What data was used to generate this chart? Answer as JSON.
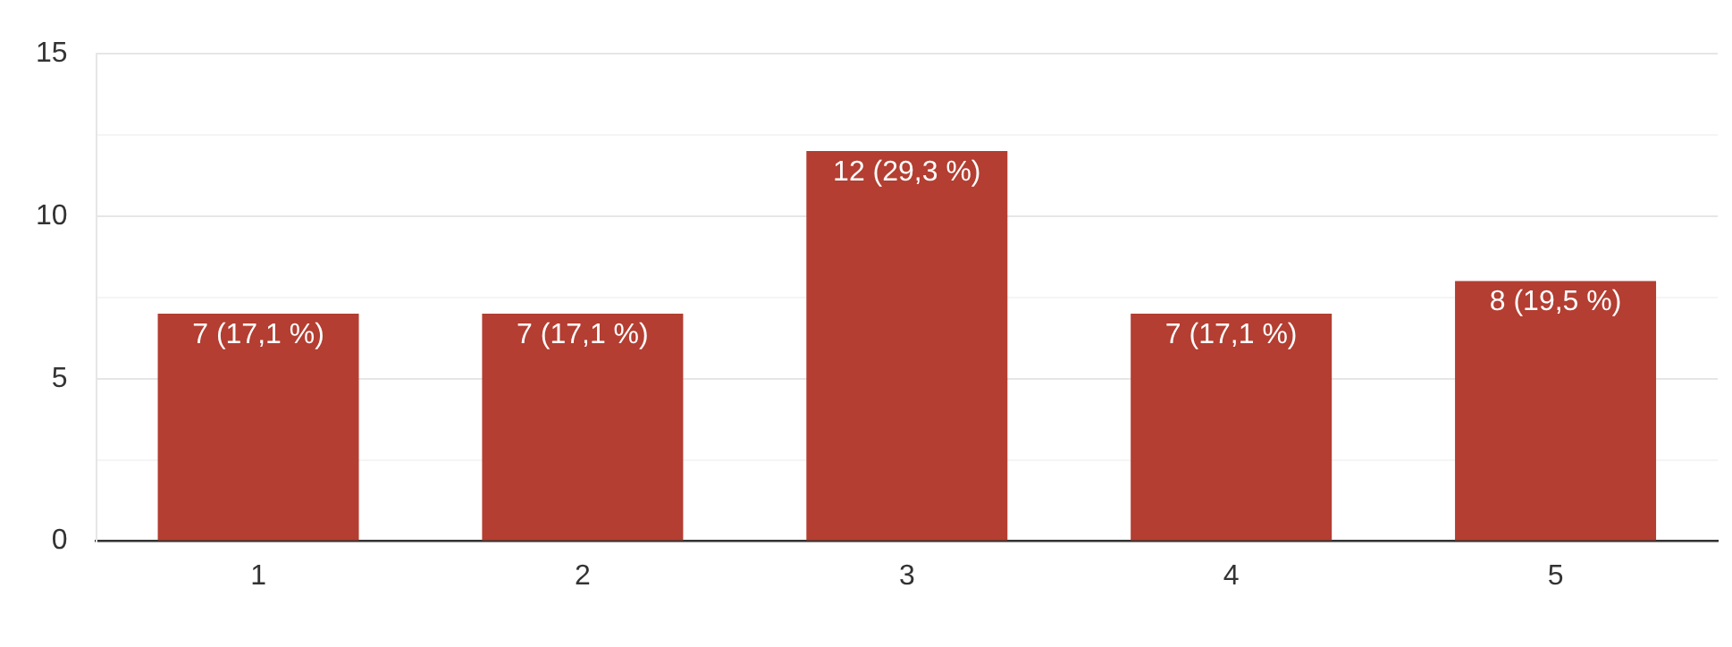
{
  "chart_data": {
    "type": "bar",
    "categories": [
      "1",
      "2",
      "3",
      "4",
      "5"
    ],
    "values": [
      7,
      7,
      12,
      7,
      8
    ],
    "color": "#b33e31",
    "value_labels": [
      "7 (17,1 %)",
      "7 (17,1 %)",
      "12 (29,3 %)",
      "7 (17,1 %)",
      "8 (19,5 %)"
    ],
    "ylim": [
      0,
      15
    ],
    "yticks": [
      0,
      {
        "value": 2.5,
        "label": null
      },
      5,
      {
        "value": 7.5,
        "label": null
      },
      10,
      {
        "value": 12.5,
        "label": null
      },
      15
    ],
    "grid": "y",
    "legend": false
  }
}
